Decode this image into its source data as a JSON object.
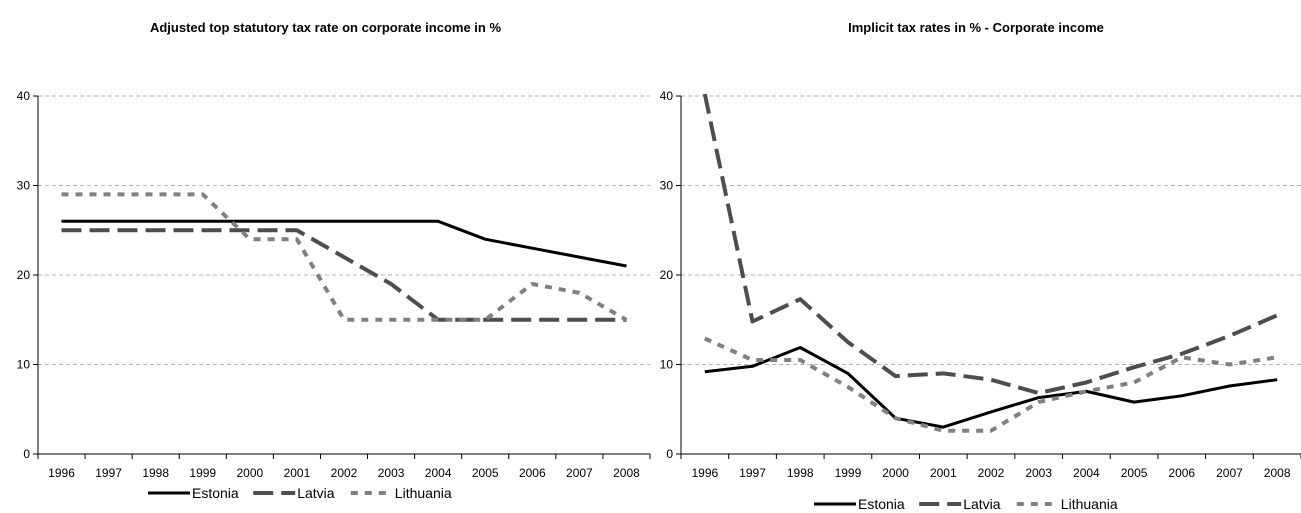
{
  "charts": [
    {
      "title": "Adjusted top statutory tax rate on corporate income in %",
      "chart_data": {
        "type": "line",
        "title": "Adjusted top statutory tax rate on corporate income in %",
        "xlabel": "",
        "ylabel": "",
        "categories": [
          "1996",
          "1997",
          "1998",
          "1999",
          "2000",
          "2001",
          "2002",
          "2003",
          "2004",
          "2005",
          "2006",
          "2007",
          "2008"
        ],
        "ylim": [
          0,
          40
        ],
        "yticks": [
          "0",
          "10",
          "20",
          "30",
          "40"
        ],
        "grid": true,
        "legend": "bottom",
        "series": [
          {
            "name": "Estonia",
            "color": "#000000",
            "style": "solid",
            "values": [
              26,
              26,
              26,
              26,
              26,
              26,
              26,
              26,
              26,
              24,
              23,
              22,
              21
            ]
          },
          {
            "name": "Latvia",
            "color": "#4d4d4d",
            "style": "long-dash",
            "values": [
              25,
              25,
              25,
              25,
              25,
              25,
              22,
              19,
              15,
              15,
              15,
              15,
              15
            ]
          },
          {
            "name": "Lithuania",
            "color": "#808080",
            "style": "short-dash",
            "values": [
              29,
              29,
              29,
              29,
              24,
              24,
              15,
              15,
              15,
              15,
              19,
              18,
              15
            ]
          }
        ]
      }
    },
    {
      "title": "Implicit tax rates in % - Corporate income",
      "chart_data": {
        "type": "line",
        "title": "Implicit tax rates in % - Corporate income",
        "xlabel": "",
        "ylabel": "",
        "categories": [
          "1996",
          "1997",
          "1998",
          "1999",
          "2000",
          "2001",
          "2002",
          "2003",
          "2004",
          "2005",
          "2006",
          "2007",
          "2008"
        ],
        "ylim": [
          0,
          40
        ],
        "yticks": [
          "0",
          "10",
          "20",
          "30",
          "40"
        ],
        "grid": true,
        "legend": "bottom",
        "series": [
          {
            "name": "Estonia",
            "color": "#000000",
            "style": "solid",
            "values": [
              9.2,
              9.8,
              11.9,
              9.0,
              4.0,
              3.0,
              4.7,
              6.3,
              7.0,
              5.8,
              6.5,
              7.6,
              8.3
            ]
          },
          {
            "name": "Latvia",
            "color": "#4d4d4d",
            "style": "long-dash",
            "values": [
              40.5,
              14.8,
              17.3,
              12.5,
              8.7,
              9.0,
              8.3,
              6.8,
              8.0,
              9.7,
              11.2,
              13.2,
              15.5
            ]
          },
          {
            "name": "Lithuania",
            "color": "#808080",
            "style": "short-dash",
            "values": [
              12.9,
              10.5,
              10.5,
              7.5,
              4.0,
              2.6,
              2.6,
              5.8,
              7.0,
              8.0,
              10.8,
              10.0,
              10.8
            ]
          }
        ]
      }
    }
  ]
}
